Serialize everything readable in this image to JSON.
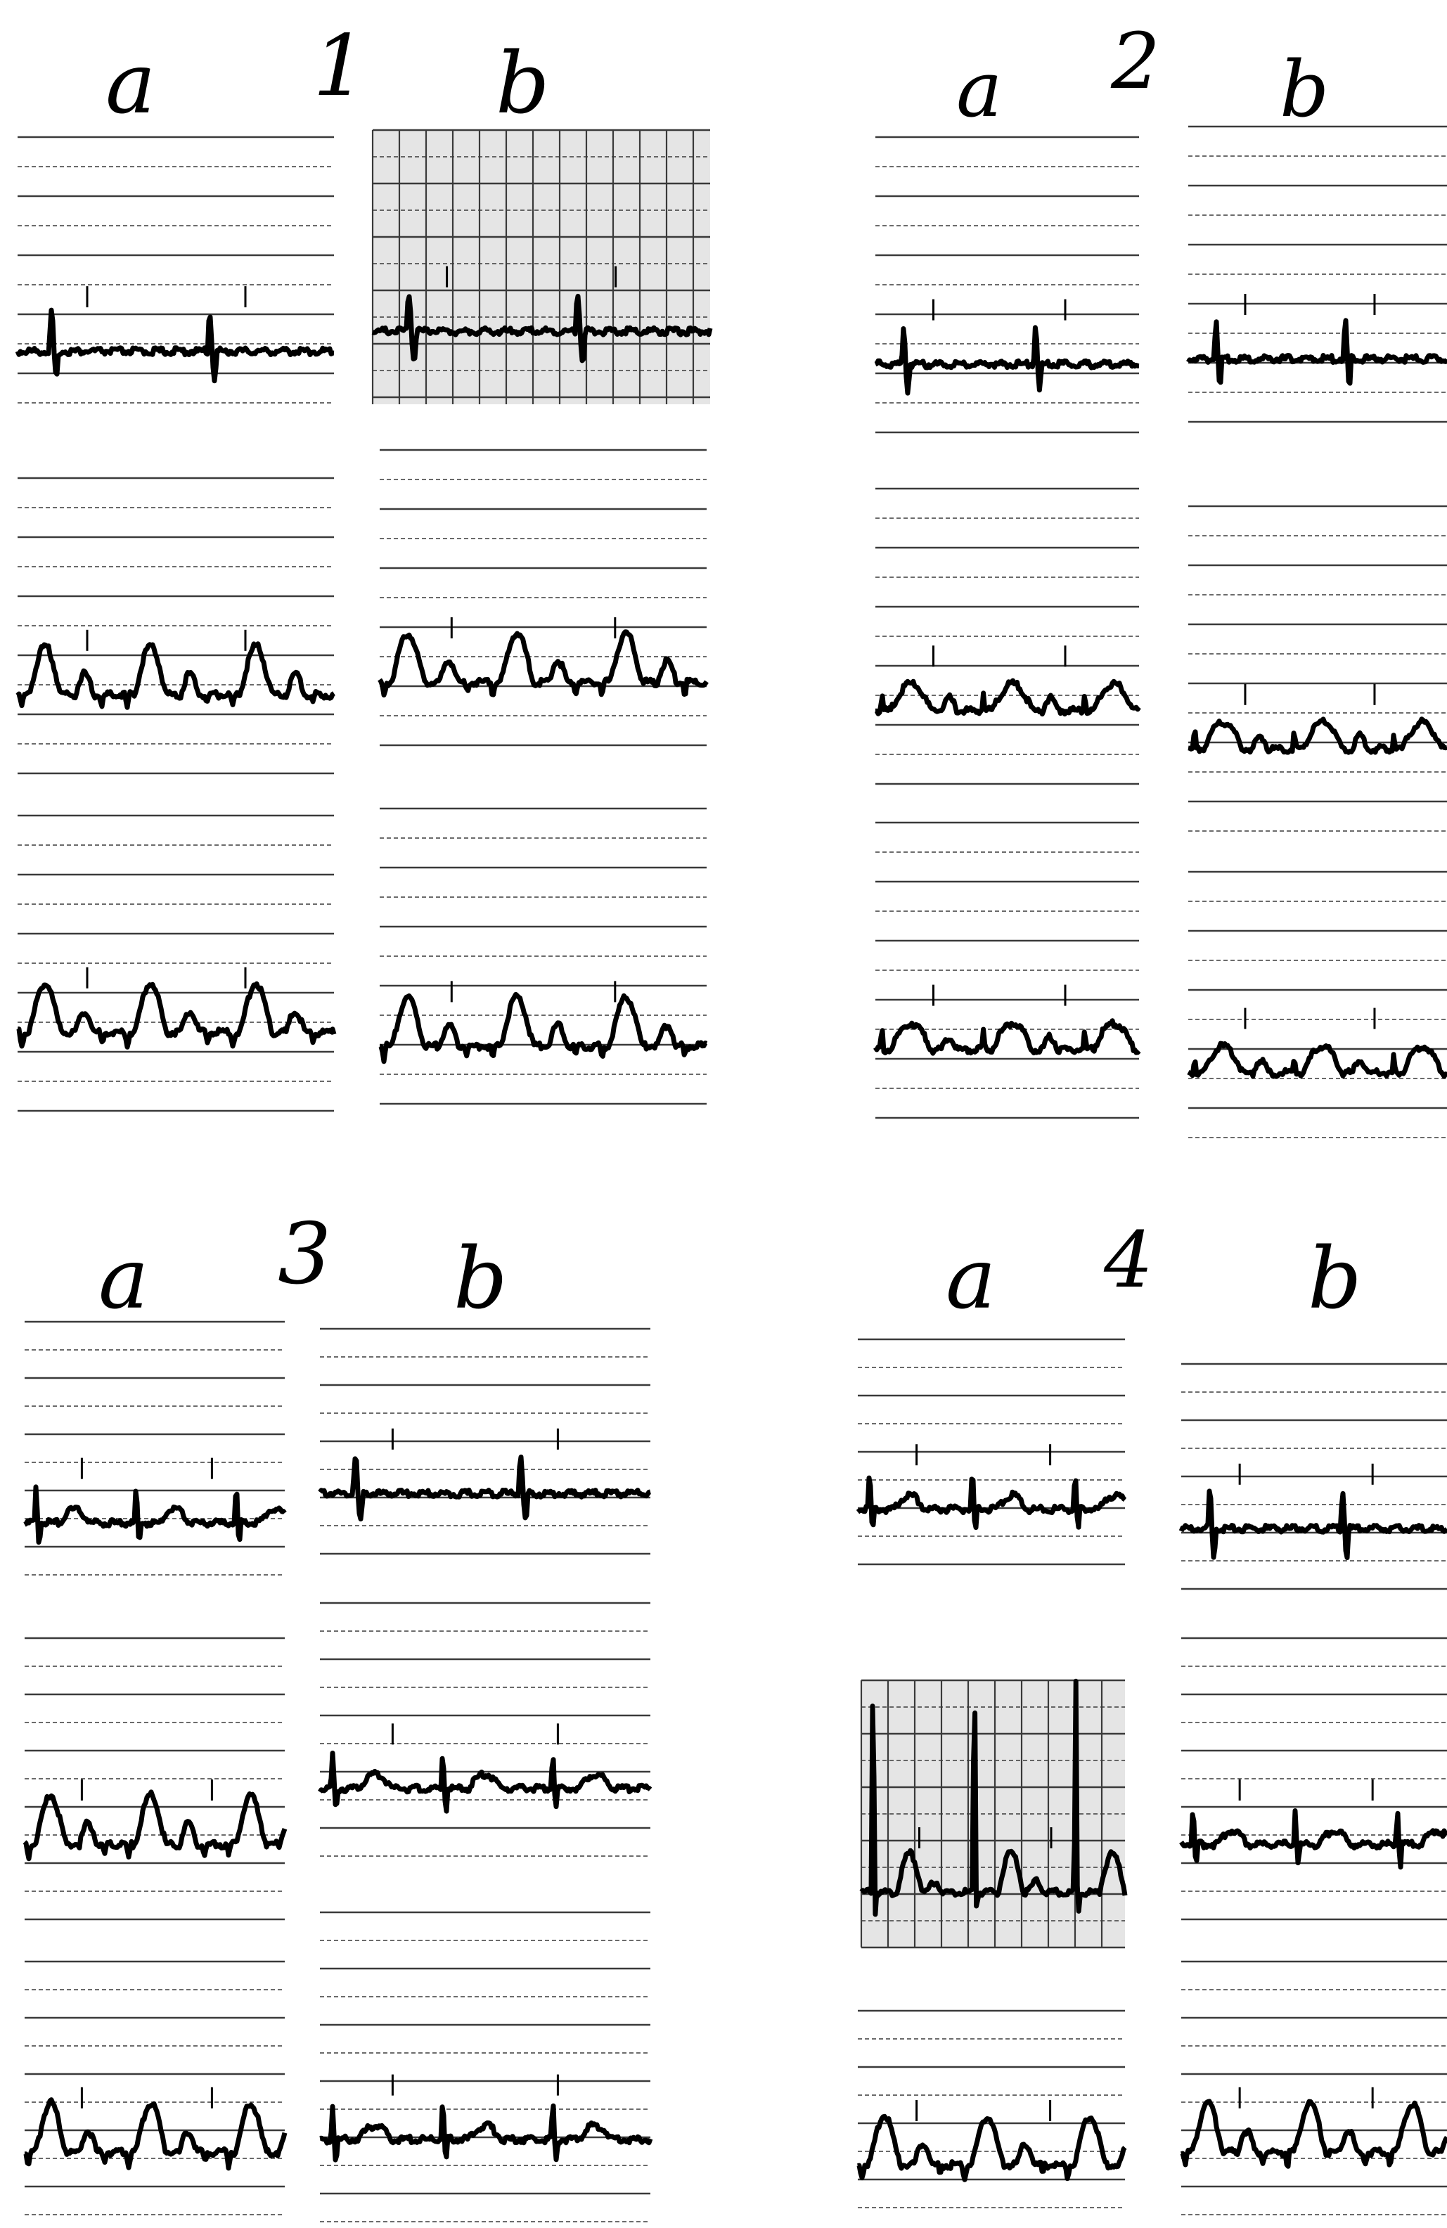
{
  "colors": {
    "ink": "#000000",
    "paper": "#ffffff",
    "rule": "#3a3a3a",
    "grid_shade": "#cfcfcf"
  },
  "figure": {
    "panels": [
      {
        "number": "1",
        "left": "a",
        "right": "b"
      },
      {
        "number": "2",
        "left": "a",
        "right": "b"
      },
      {
        "number": "3",
        "left": "a",
        "right": "b"
      },
      {
        "number": "4",
        "left": "a",
        "right": "b"
      }
    ]
  }
}
